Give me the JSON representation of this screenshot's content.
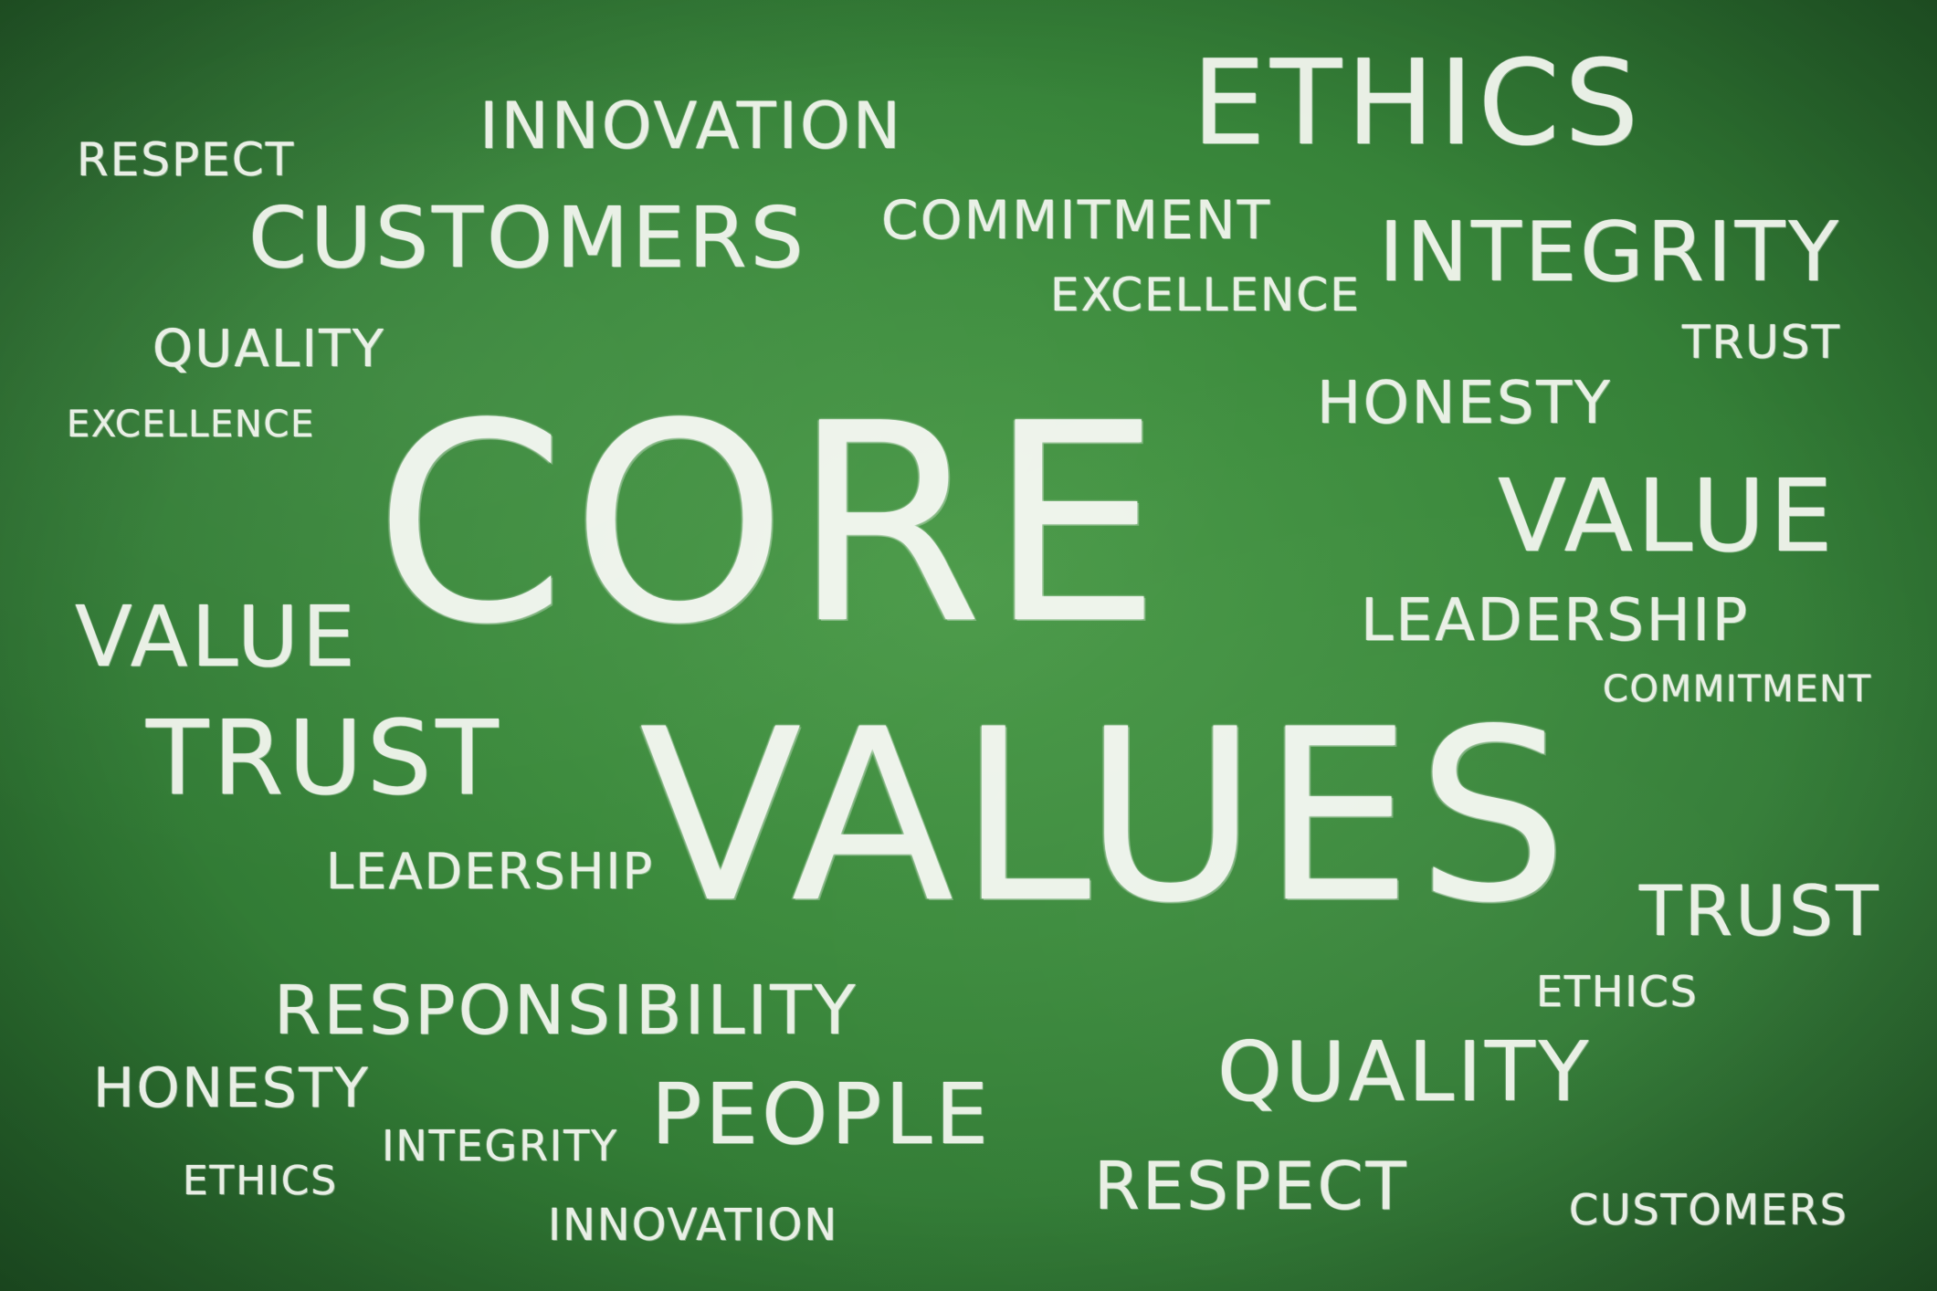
{
  "background_color": "#3b8a3c",
  "chalk_color": "#f3f6ef",
  "headline": {
    "line1": "CORE",
    "line2": "VALUES"
  },
  "words": [
    "RESPECT",
    "INNOVATION",
    "ETHICS",
    "CUSTOMERS",
    "COMMITMENT",
    "INTEGRITY",
    "EXCELLENCE",
    "QUALITY",
    "TRUST",
    "EXCELLENCE",
    "HONESTY",
    "VALUE",
    "VALUE",
    "LEADERSHIP",
    "COMMITMENT",
    "TRUST",
    "LEADERSHIP",
    "TRUST",
    "ETHICS",
    "RESPONSIBILITY",
    "QUALITY",
    "HONESTY",
    "PEOPLE",
    "INTEGRITY",
    "ETHICS",
    "RESPECT",
    "INNOVATION",
    "CUSTOMERS"
  ]
}
